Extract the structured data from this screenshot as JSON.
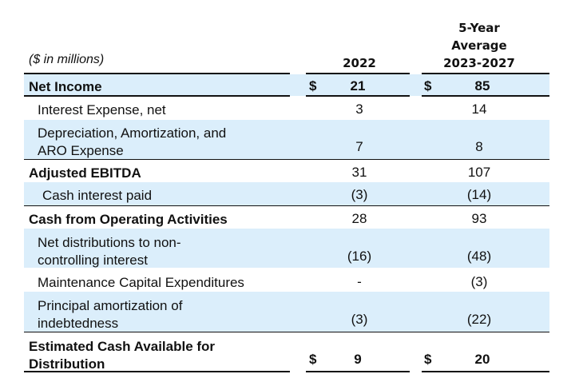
{
  "header": {
    "units": "($ in millions)",
    "col1": "2022",
    "col2_line1": "5-Year",
    "col2_line2": "Average",
    "col2_line3": "2023-2027"
  },
  "rows": [
    {
      "label": "Net Income",
      "v1": "21",
      "v2": "85",
      "dollar": "$"
    },
    {
      "label": "Interest Expense, net",
      "v1": "3",
      "v2": "14"
    },
    {
      "label_line1": "Depreciation, Amortization, and",
      "label_line2": "ARO Expense",
      "v1": "7",
      "v2": "8"
    },
    {
      "label": "Adjusted EBITDA",
      "v1": "31",
      "v2": "107"
    },
    {
      "label": "Cash interest paid",
      "v1": "(3)",
      "v2": "(14)"
    },
    {
      "label": "Cash from Operating Activities",
      "v1": "28",
      "v2": "93"
    },
    {
      "label_line1": "Net distributions to non-",
      "label_line2": "controlling interest",
      "v1": "(16)",
      "v2": "(48)"
    },
    {
      "label": "Maintenance Capital Expenditures",
      "v1": "-",
      "v2": "(3)"
    },
    {
      "label_line1": "Principal amortization of",
      "label_line2": "indebtedness",
      "v1": "(3)",
      "v2": "(22)"
    },
    {
      "label_line1": "Estimated Cash Available for",
      "label_line2": "Distribution",
      "v1": "9",
      "v2": "20",
      "dollar": "$"
    }
  ]
}
